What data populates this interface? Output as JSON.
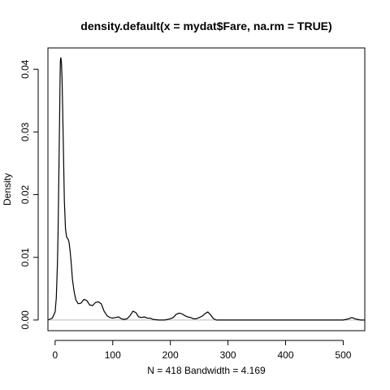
{
  "chart_data": {
    "type": "line",
    "title": "density.default(x = mydat$Fare, na.rm = TRUE)",
    "xlabel": "N = 418   Bandwidth = 4.169",
    "ylabel": "Density",
    "xlim": [
      -12.5,
      537.5
    ],
    "ylim": [
      -0.0017,
      0.0434
    ],
    "x_ticks": [
      0,
      100,
      200,
      300,
      400,
      500
    ],
    "x_tick_labels": [
      "0",
      "100",
      "200",
      "300",
      "400",
      "500"
    ],
    "y_ticks": [
      0.0,
      0.01,
      0.02,
      0.03,
      0.04
    ],
    "y_tick_labels": [
      "0.00",
      "0.01",
      "0.02",
      "0.03",
      "0.04"
    ],
    "grid": false,
    "baseline": 0,
    "series": [
      {
        "x": [
          -12.5,
          -5,
          0,
          2,
          4,
          5,
          6,
          7,
          8,
          8.5,
          9,
          9.5,
          10,
          11,
          12,
          13,
          14,
          15,
          16,
          18,
          20,
          22,
          24,
          26,
          28,
          30,
          33,
          36,
          40,
          45,
          50,
          55,
          60,
          65,
          70,
          75,
          80,
          85,
          90,
          95,
          100,
          105,
          110,
          115,
          120,
          125,
          130,
          135,
          140,
          145,
          150,
          155,
          160,
          165,
          170,
          180,
          190,
          200,
          205,
          210,
          215,
          220,
          225,
          230,
          235,
          240,
          245,
          250,
          255,
          260,
          265,
          270,
          275,
          280,
          300,
          350,
          400,
          450,
          500,
          505,
          510,
          512,
          515,
          518,
          520,
          525,
          530,
          537.5
        ],
        "y": [
          0.0,
          0.0003,
          0.0013,
          0.0035,
          0.009,
          0.0135,
          0.02,
          0.027,
          0.034,
          0.038,
          0.041,
          0.0418,
          0.0418,
          0.041,
          0.0385,
          0.034,
          0.029,
          0.024,
          0.019,
          0.0145,
          0.0132,
          0.013,
          0.0125,
          0.011,
          0.009,
          0.0065,
          0.0045,
          0.0032,
          0.0026,
          0.0027,
          0.0033,
          0.0031,
          0.0024,
          0.0023,
          0.0028,
          0.0029,
          0.0026,
          0.0014,
          0.0007,
          0.0004,
          0.0003,
          0.0004,
          0.0005,
          0.0002,
          0.0001,
          0.0002,
          0.0007,
          0.0014,
          0.0012,
          0.0005,
          0.0004,
          0.0005,
          0.0003,
          0.0003,
          0.0001,
          0.0,
          0.0,
          0.0002,
          0.0004,
          0.0009,
          0.0011,
          0.001,
          0.0007,
          0.0005,
          0.0004,
          0.0002,
          0.0002,
          0.0004,
          0.0006,
          0.001,
          0.0013,
          0.0008,
          0.0002,
          0.0,
          0.0,
          0.0,
          0.0,
          0.0,
          0.0,
          0.0001,
          0.0002,
          0.0003,
          0.0004,
          0.0003,
          0.0002,
          0.0001,
          0.0,
          0.0
        ]
      }
    ]
  }
}
